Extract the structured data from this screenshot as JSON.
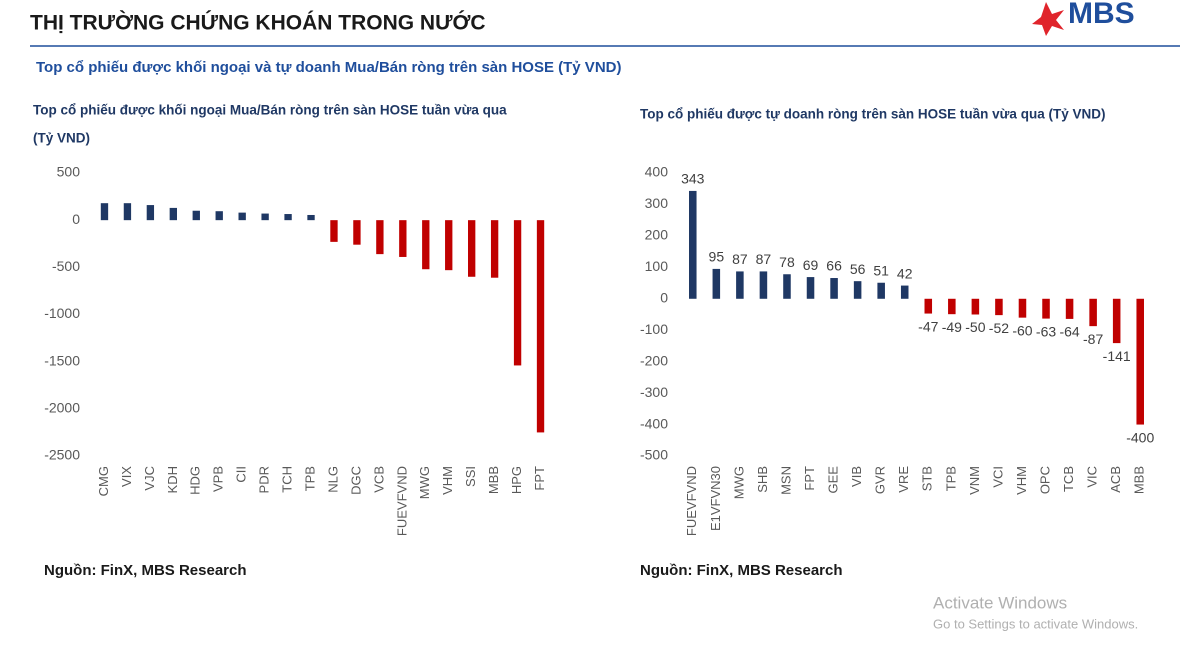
{
  "header": {
    "title": "THỊ TRƯỜNG CHỨNG KHOÁN TRONG NƯỚC",
    "logo": "MBS"
  },
  "subtitle": "Top cổ phiếu được khối ngoại và tự doanh Mua/Bán ròng trên sàn HOSE (Tỷ VND)",
  "chart_data": [
    {
      "type": "bar",
      "title": "Top cổ phiếu được khối ngoại Mua/Bán ròng trên sàn HOSE tuần vừa qua",
      "title_line2": "(Tỷ VND)",
      "categories": [
        "CMG",
        "VIX",
        "VJC",
        "KDH",
        "HDG",
        "VPB",
        "CII",
        "PDR",
        "TCH",
        "TPB",
        "NLG",
        "DGC",
        "VCB",
        "FUEVFVND",
        "MWG",
        "VHM",
        "SSI",
        "MBB",
        "HPG",
        "FPT"
      ],
      "values": [
        180,
        180,
        160,
        130,
        100,
        95,
        80,
        70,
        65,
        55,
        -230,
        -260,
        -360,
        -390,
        -520,
        -530,
        -600,
        -610,
        -1540,
        -2250
      ],
      "positive_color": "#1f3864",
      "negative_color": "#c00000",
      "ylim": [
        -2500,
        500
      ],
      "yticks": [
        500,
        0,
        -500,
        -1000,
        -1500,
        -2000,
        -2500
      ],
      "data_labels": false,
      "source": "Nguồn: FinX, MBS Research"
    },
    {
      "type": "bar",
      "title": "Top cổ phiếu được tự doanh ròng trên sàn HOSE tuần vừa qua (Tỷ VND)",
      "categories": [
        "FUEVFVND",
        "E1VFVN30",
        "MWG",
        "SHB",
        "MSN",
        "FPT",
        "GEE",
        "VIB",
        "GVR",
        "VRE",
        "STB",
        "TPB",
        "VNM",
        "VCI",
        "VHM",
        "OPC",
        "TCB",
        "VIC",
        "ACB",
        "MBB"
      ],
      "values": [
        343,
        95,
        87,
        87,
        78,
        69,
        66,
        56,
        51,
        42,
        -47,
        -49,
        -50,
        -52,
        -60,
        -63,
        -64,
        -87,
        -141,
        -400
      ],
      "positive_color": "#1f3864",
      "negative_color": "#c00000",
      "ylim": [
        -500,
        400
      ],
      "yticks": [
        400,
        300,
        200,
        100,
        0,
        -100,
        -200,
        -300,
        -400,
        -500
      ],
      "data_labels": true,
      "source": "Nguồn: FinX, MBS Research"
    }
  ],
  "watermark": {
    "line1": "Activate Windows",
    "line2": "Go to Settings to activate Windows."
  }
}
